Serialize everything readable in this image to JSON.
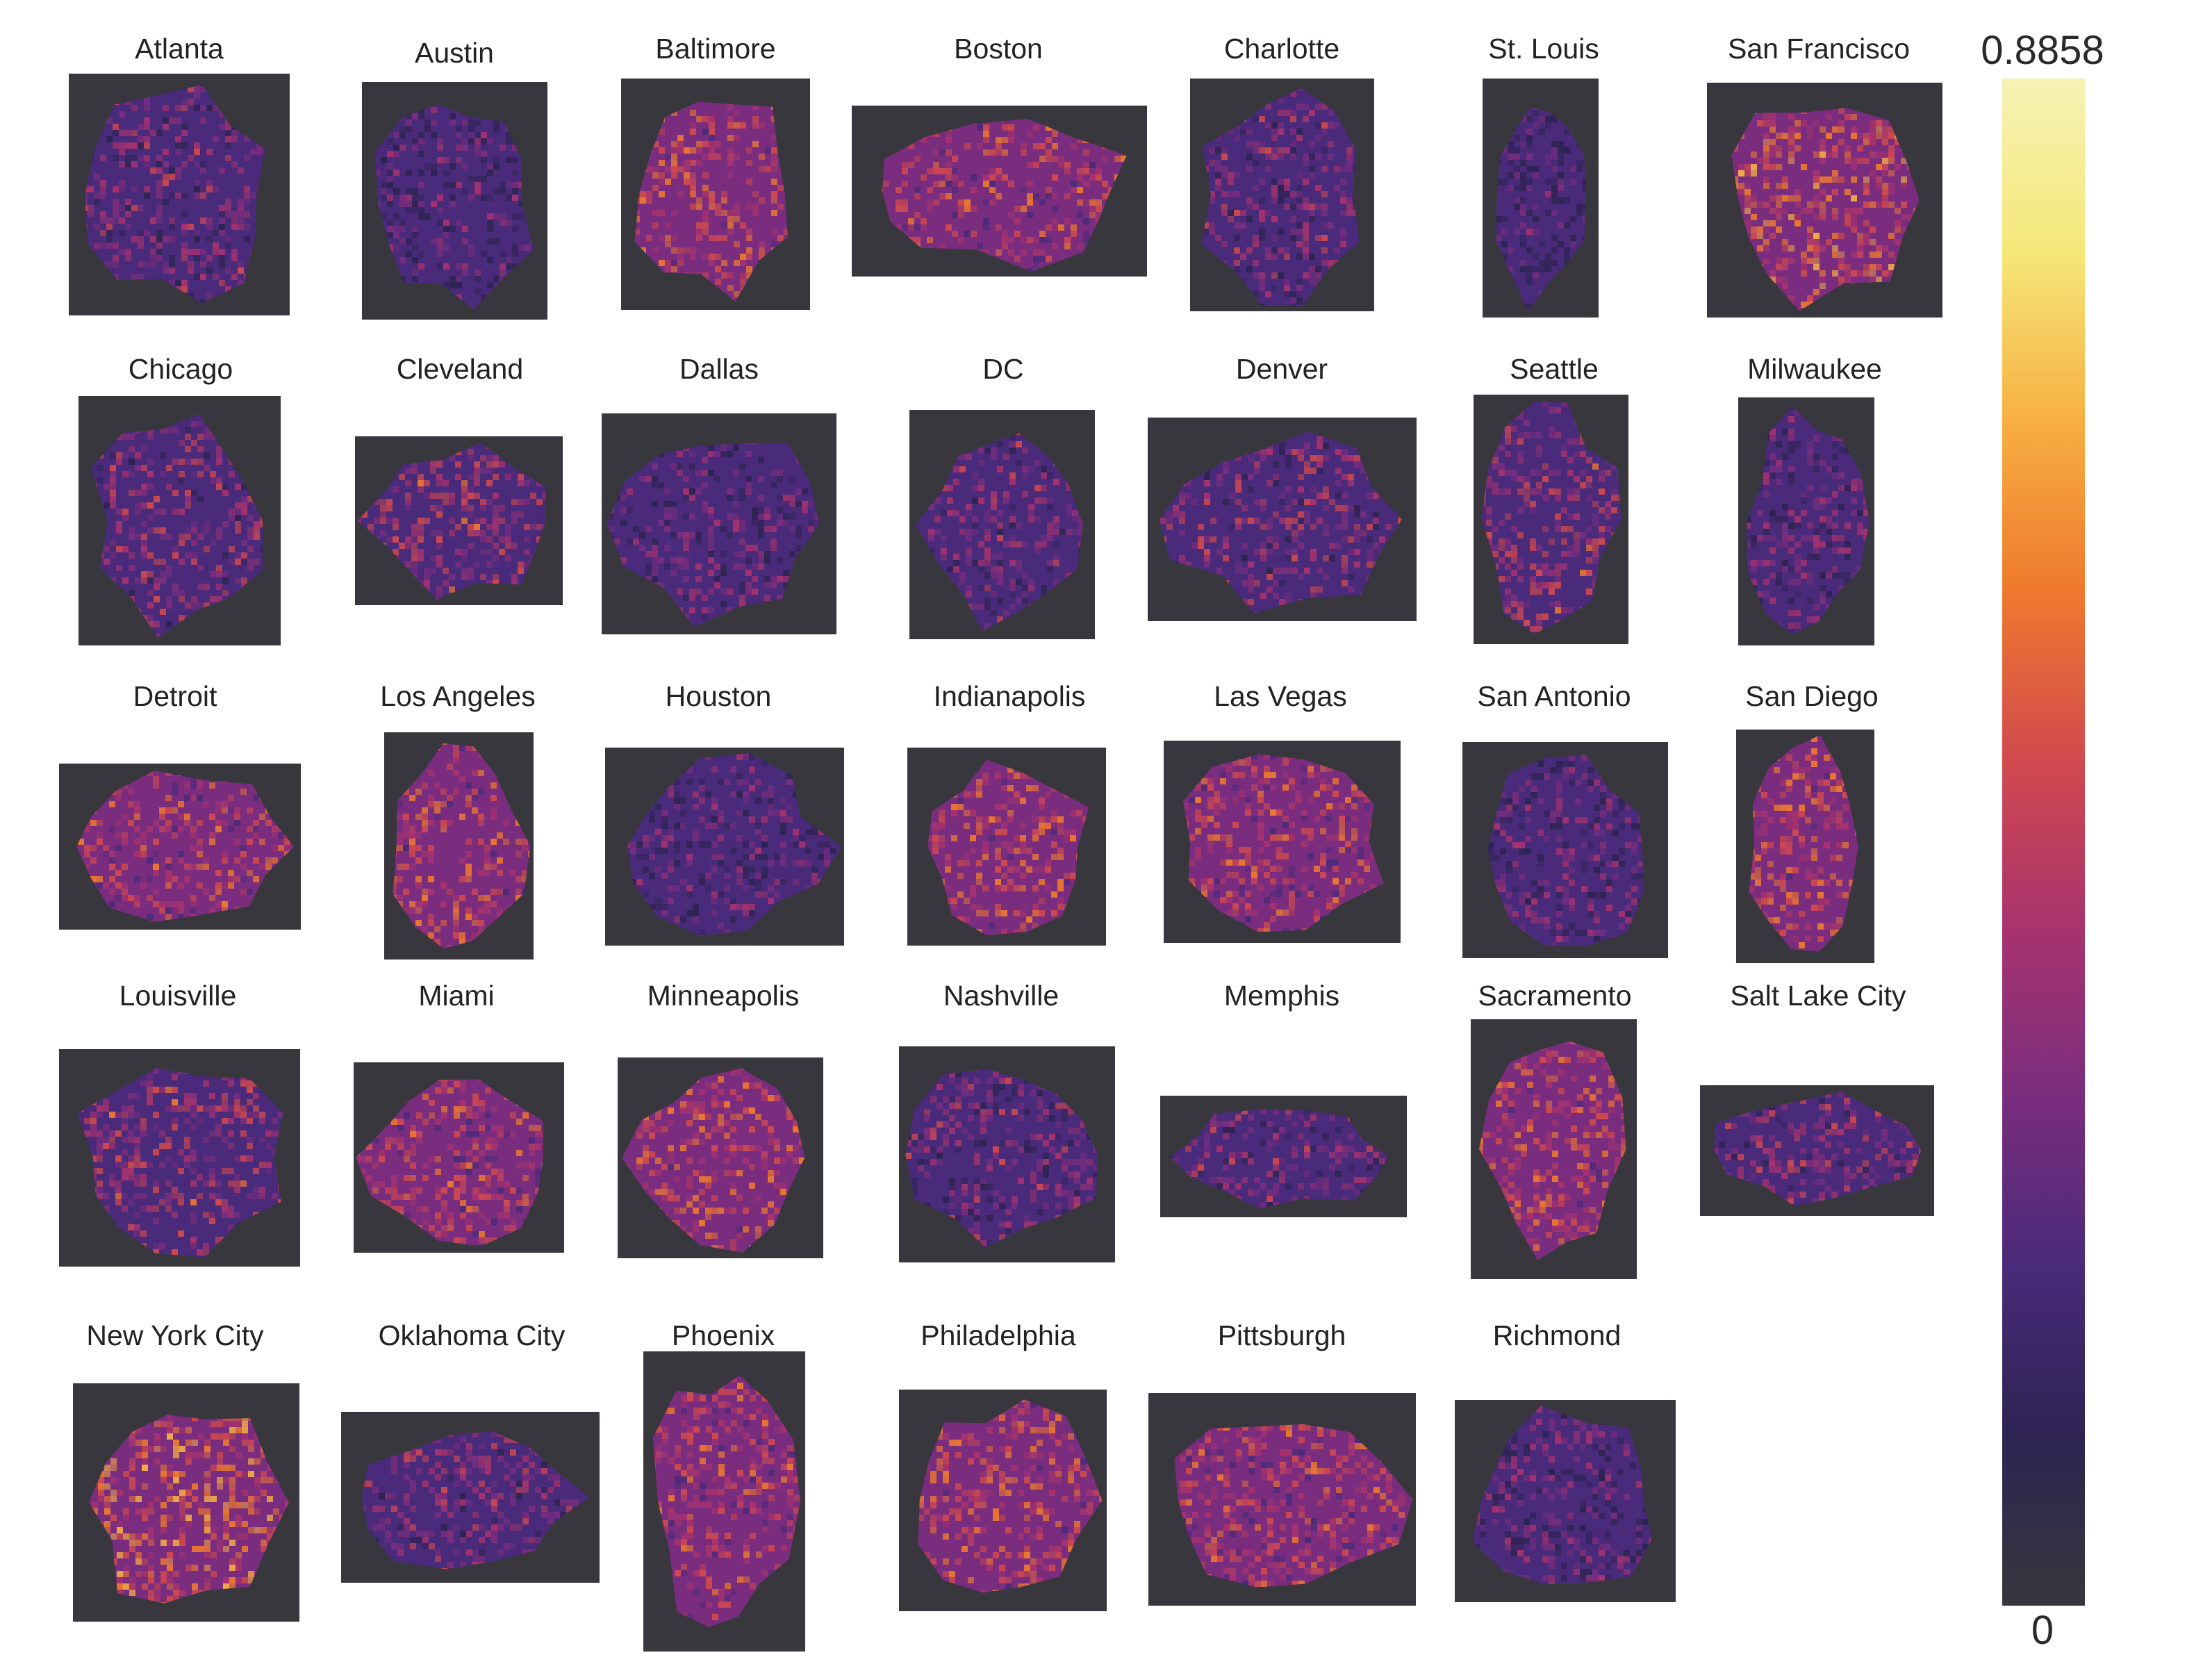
{
  "figure": {
    "cities": [
      {
        "name": "Atlanta",
        "intensity": 0.35
      },
      {
        "name": "Austin",
        "intensity": 0.25
      },
      {
        "name": "Baltimore",
        "intensity": 0.55
      },
      {
        "name": "Boston",
        "intensity": 0.5
      },
      {
        "name": "Charlotte",
        "intensity": 0.35
      },
      {
        "name": "St. Louis",
        "intensity": 0.2
      },
      {
        "name": "San Francisco",
        "intensity": 0.6
      },
      {
        "name": "Chicago",
        "intensity": 0.4
      },
      {
        "name": "Cleveland",
        "intensity": 0.45
      },
      {
        "name": "Dallas",
        "intensity": 0.3
      },
      {
        "name": "DC",
        "intensity": 0.35
      },
      {
        "name": "Denver",
        "intensity": 0.4
      },
      {
        "name": "Seattle",
        "intensity": 0.45
      },
      {
        "name": "Milwaukee",
        "intensity": 0.3
      },
      {
        "name": "Detroit",
        "intensity": 0.5
      },
      {
        "name": "Los Angeles",
        "intensity": 0.55
      },
      {
        "name": "Houston",
        "intensity": 0.3
      },
      {
        "name": "Indianapolis",
        "intensity": 0.55
      },
      {
        "name": "Las Vegas",
        "intensity": 0.5
      },
      {
        "name": "San Antonio",
        "intensity": 0.3
      },
      {
        "name": "San Diego",
        "intensity": 0.55
      },
      {
        "name": "Louisville",
        "intensity": 0.45
      },
      {
        "name": "Miami",
        "intensity": 0.5
      },
      {
        "name": "Minneapolis",
        "intensity": 0.55
      },
      {
        "name": "Nashville",
        "intensity": 0.35
      },
      {
        "name": "Memphis",
        "intensity": 0.35
      },
      {
        "name": "Sacramento",
        "intensity": 0.55
      },
      {
        "name": "Salt Lake City",
        "intensity": 0.4
      },
      {
        "name": "New York City",
        "intensity": 0.65
      },
      {
        "name": "Oklahoma City",
        "intensity": 0.4
      },
      {
        "name": "Phoenix",
        "intensity": 0.5
      },
      {
        "name": "Philadelphia",
        "intensity": 0.55
      },
      {
        "name": "Pittsburgh",
        "intensity": 0.5
      },
      {
        "name": "Richmond",
        "intensity": 0.3
      }
    ]
  },
  "colorbar": {
    "max_label": "0.8858",
    "min_label": "0",
    "colormap": "inferno",
    "stops": [
      "#38373d",
      "#2d2452",
      "#4a2a7a",
      "#7a2d7e",
      "#a8336e",
      "#d24a4e",
      "#ef7a2d",
      "#f7b043",
      "#f5e87a",
      "#f6f2b5"
    ]
  }
}
